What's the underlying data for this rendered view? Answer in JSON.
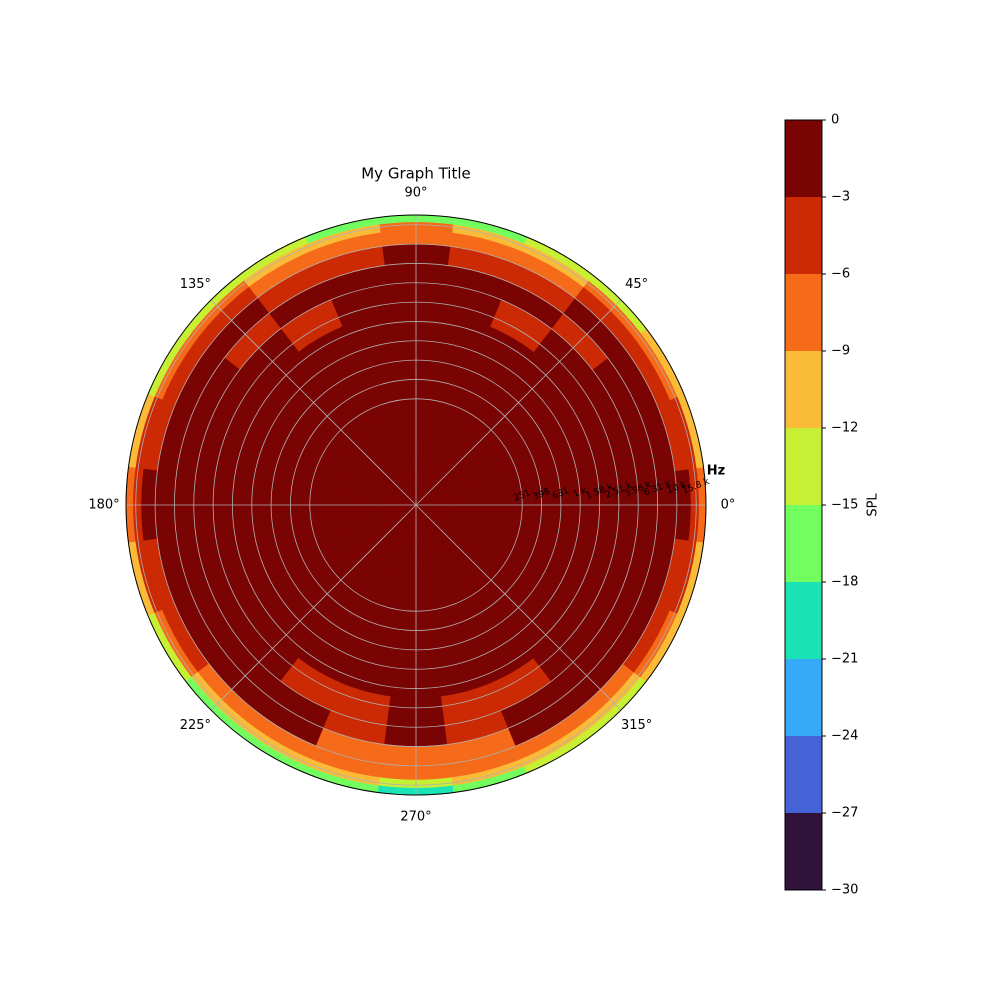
{
  "chart_data": {
    "type": "polar_contour",
    "title": "My Graph Title",
    "r_label": "Hz",
    "colorbar_label": "SPL",
    "rlim": [
      20,
      20000
    ],
    "rscale": "log",
    "grid": true,
    "rticks": [
      251,
      398,
      631,
      {
        "value": 1000,
        "label": "1 k"
      },
      {
        "value": 1585,
        "label": "1.58 k"
      },
      {
        "value": 2512,
        "label": "2.51 k"
      },
      {
        "value": 3981,
        "label": "3.98 k"
      },
      {
        "value": 6310,
        "label": "6.31 k"
      },
      {
        "value": 10000,
        "label": "10 k"
      },
      {
        "value": 15849,
        "label": "15.8 k"
      }
    ],
    "angle_ticks": [
      {
        "value": 0,
        "label": "0°"
      },
      {
        "value": 45,
        "label": "45°"
      },
      {
        "value": 90,
        "label": "90°"
      },
      {
        "value": 135,
        "label": "135°"
      },
      {
        "value": 180,
        "label": "180°"
      },
      {
        "value": 225,
        "label": "225°"
      },
      {
        "value": 270,
        "label": "270°"
      },
      {
        "value": 315,
        "label": "315°"
      }
    ],
    "colorbar_ticks": [
      {
        "value": -30,
        "label": "−30"
      },
      {
        "value": -27,
        "label": "−27"
      },
      {
        "value": -24,
        "label": "−24"
      },
      {
        "value": -21,
        "label": "−21"
      },
      {
        "value": -18,
        "label": "−18"
      },
      {
        "value": -15,
        "label": "−15"
      },
      {
        "value": -12,
        "label": "−12"
      },
      {
        "value": -9,
        "label": "−9"
      },
      {
        "value": -6,
        "label": "−6"
      },
      {
        "value": -3,
        "label": "−3"
      },
      0
    ],
    "colors": [
      "#30123b",
      "#4662d7",
      "#36aaf9",
      "#1ae4b6",
      "#72fe5e",
      "#c7ef34",
      "#fabb39",
      "#f66b19",
      "#cb2a04",
      "#7a0403"
    ],
    "angles": [
      0,
      15,
      30,
      45,
      60,
      75,
      90,
      105,
      120,
      135,
      150,
      165,
      180,
      195,
      210,
      225,
      240,
      255,
      270,
      285,
      300,
      315,
      330,
      345
    ],
    "frequency_edges": [
      20,
      2000,
      4000,
      6300,
      10000,
      14000,
      17000,
      20000
    ],
    "spl": [
      [
        -1,
        -1,
        -1,
        -1,
        -1,
        -1,
        -1,
        -1,
        -1,
        -1,
        -1,
        -1,
        -1,
        -1,
        -1,
        -1,
        -1,
        -2,
        -2,
        -2,
        -1,
        -1,
        -1,
        -1
      ],
      [
        -1,
        -1,
        -1,
        -2,
        -4,
        -1,
        -1,
        -1,
        -4,
        -2,
        -1,
        -1,
        -1,
        -1,
        -1,
        -2,
        -5,
        -4,
        -1,
        -4,
        -5,
        -2,
        -1,
        -1
      ],
      [
        -2,
        -2,
        -2,
        -4,
        -2,
        -2,
        -2,
        -2,
        -2,
        -4,
        -2,
        -2,
        -2,
        -2,
        -2,
        -2,
        -2,
        -6,
        -2,
        -6,
        -2,
        -2,
        -2,
        -2
      ],
      [
        -2,
        -2,
        -2,
        -2,
        -5,
        -5,
        -2,
        -5,
        -5,
        -2,
        -2,
        -2,
        -2,
        -2,
        -2,
        -2,
        -2,
        -7,
        -7,
        -7,
        -2,
        -2,
        -2,
        -2
      ],
      [
        -3,
        -4,
        -5,
        -5,
        -8,
        -8,
        -7,
        -8,
        -8,
        -5,
        -5,
        -4,
        -3,
        -4,
        -5,
        -7,
        -8,
        -9,
        -9,
        -9,
        -8,
        -7,
        -5,
        -4
      ],
      [
        -5,
        -6,
        -7,
        -8,
        -10,
        -10,
        -9,
        -10,
        -10,
        -8,
        -7,
        -6,
        -5,
        -6,
        -8,
        -10,
        -11,
        -12,
        -13,
        -12,
        -11,
        -10,
        -8,
        -6
      ],
      [
        -8,
        -10,
        -12,
        -13,
        -15,
        -16,
        -16,
        -16,
        -15,
        -14,
        -13,
        -11,
        -9,
        -11,
        -14,
        -18,
        -16,
        -17,
        -20,
        -17,
        -15,
        -14,
        -12,
        -10
      ]
    ]
  }
}
